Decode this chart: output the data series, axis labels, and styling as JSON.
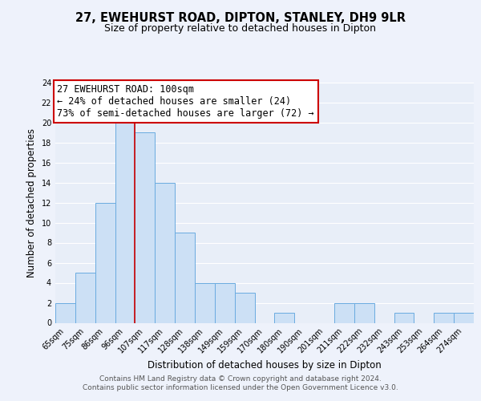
{
  "title": "27, EWEHURST ROAD, DIPTON, STANLEY, DH9 9LR",
  "subtitle": "Size of property relative to detached houses in Dipton",
  "xlabel": "Distribution of detached houses by size in Dipton",
  "ylabel": "Number of detached properties",
  "bin_labels": [
    "65sqm",
    "75sqm",
    "86sqm",
    "96sqm",
    "107sqm",
    "117sqm",
    "128sqm",
    "138sqm",
    "149sqm",
    "159sqm",
    "170sqm",
    "180sqm",
    "190sqm",
    "201sqm",
    "211sqm",
    "222sqm",
    "232sqm",
    "243sqm",
    "253sqm",
    "264sqm",
    "274sqm"
  ],
  "bar_heights": [
    2,
    5,
    12,
    20,
    19,
    14,
    9,
    4,
    4,
    3,
    0,
    1,
    0,
    0,
    2,
    2,
    0,
    1,
    0,
    1,
    1
  ],
  "bar_color": "#cce0f5",
  "bar_edge_color": "#6aabe0",
  "property_line_x": 3.5,
  "property_line_color": "#cc0000",
  "annotation_title": "27 EWEHURST ROAD: 100sqm",
  "annotation_line1": "← 24% of detached houses are smaller (24)",
  "annotation_line2": "73% of semi-detached houses are larger (72) →",
  "annotation_box_color": "#ffffff",
  "annotation_box_edge_color": "#cc0000",
  "ylim": [
    0,
    24
  ],
  "yticks": [
    0,
    2,
    4,
    6,
    8,
    10,
    12,
    14,
    16,
    18,
    20,
    22,
    24
  ],
  "footer_line1": "Contains HM Land Registry data © Crown copyright and database right 2024.",
  "footer_line2": "Contains public sector information licensed under the Open Government Licence v3.0.",
  "bg_color": "#eef2fb",
  "plot_bg_color": "#e8eef8",
  "grid_color": "#ffffff",
  "title_fontsize": 10.5,
  "subtitle_fontsize": 9,
  "axis_label_fontsize": 8.5,
  "tick_fontsize": 7,
  "footer_fontsize": 6.5,
  "annotation_fontsize": 8.5
}
